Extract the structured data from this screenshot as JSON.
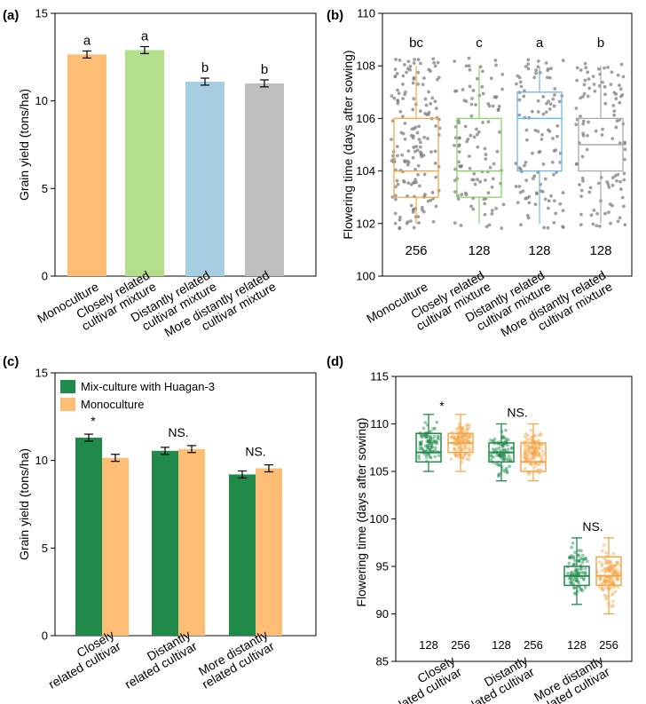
{
  "chart_data": [
    {
      "panel": "(a)",
      "type": "bar",
      "ylabel": "Grain yield (tons/ha)",
      "ylim": [
        0,
        15
      ],
      "yticks": [
        0,
        5,
        10,
        15
      ],
      "categories": [
        [
          "Monoculture"
        ],
        [
          "Closely related",
          "cultivar mixture"
        ],
        [
          "Distantly related",
          "cultivar mixture"
        ],
        [
          "More distantly related",
          "cultivar mixture"
        ]
      ],
      "values": [
        12.65,
        12.9,
        11.1,
        11.0
      ],
      "errors": [
        0.2,
        0.2,
        0.2,
        0.2
      ],
      "letters": [
        "a",
        "a",
        "b",
        "b"
      ],
      "colors": [
        "#fdbd74",
        "#b3df8a",
        "#a6cee3",
        "#bfbfbf"
      ]
    },
    {
      "panel": "(b)",
      "type": "box",
      "ylabel": "Flowering time (days after sowing)",
      "ylim": [
        100,
        110
      ],
      "yticks": [
        100,
        102,
        104,
        106,
        108,
        110
      ],
      "categories": [
        [
          "Monoculture"
        ],
        [
          "Closely related",
          "cultivar mixture"
        ],
        [
          "Distantly related",
          "cultivar mixture"
        ],
        [
          "More distantly related",
          "cultivar mixture"
        ]
      ],
      "boxes": [
        {
          "min": 102,
          "q1": 103,
          "median": 104,
          "q3": 106,
          "max": 108,
          "n": "256",
          "letter": "bc",
          "color": "#f5a64a"
        },
        {
          "min": 102,
          "q1": 103,
          "median": 104,
          "q3": 106,
          "max": 108,
          "n": "128",
          "letter": "c",
          "color": "#8fd068"
        },
        {
          "min": 102,
          "q1": 104,
          "median": 106,
          "q3": 107,
          "max": 108,
          "n": "128",
          "letter": "a",
          "color": "#6fb8e0"
        },
        {
          "min": 102,
          "q1": 104,
          "median": 105,
          "q3": 106,
          "max": 108,
          "n": "128",
          "letter": "b",
          "color": "#a9a9a9"
        }
      ],
      "point_color": "#808080"
    },
    {
      "panel": "(c)",
      "type": "bar",
      "ylabel": "Grain yield (tons/ha)",
      "ylim": [
        0,
        15
      ],
      "yticks": [
        0,
        5,
        10,
        15
      ],
      "categories": [
        [
          "Closely",
          "related cultivar"
        ],
        [
          "Distantly",
          "related cultivar"
        ],
        [
          "More distantly",
          "related cultivar"
        ]
      ],
      "series": [
        {
          "name": "Mix-culture with Huagan-3",
          "color": "#1f8a4a",
          "values": [
            11.3,
            10.55,
            9.2
          ],
          "errors": [
            0.2,
            0.2,
            0.2
          ]
        },
        {
          "name": "Monoculture",
          "color": "#fdbd74",
          "values": [
            10.15,
            10.65,
            9.55
          ],
          "errors": [
            0.2,
            0.2,
            0.2
          ]
        }
      ],
      "annotations": [
        "*",
        "NS.",
        "NS."
      ],
      "legend": "top-left"
    },
    {
      "panel": "(d)",
      "type": "box",
      "ylabel": "Flowering time (days after sowing)",
      "ylim": [
        85,
        115
      ],
      "yticks": [
        85,
        90,
        95,
        100,
        105,
        110,
        115
      ],
      "categories": [
        [
          "Closely",
          "related cultivar"
        ],
        [
          "Distantly",
          "related cultivar"
        ],
        [
          "More distantly",
          "related cultivar"
        ]
      ],
      "groups": [
        {
          "annotation": "*",
          "boxes": [
            {
              "min": 105,
              "q1": 106,
              "median": 107,
              "q3": 109,
              "max": 111,
              "n": "128",
              "color": "#1f8a4a"
            },
            {
              "min": 105,
              "q1": 107,
              "median": 108,
              "q3": 109,
              "max": 111,
              "n": "256",
              "color": "#f5a64a"
            }
          ]
        },
        {
          "annotation": "NS.",
          "boxes": [
            {
              "min": 104,
              "q1": 106,
              "median": 107,
              "q3": 108,
              "max": 110,
              "n": "128",
              "color": "#1f8a4a"
            },
            {
              "min": 104,
              "q1": 105,
              "median": 106,
              "q3": 108,
              "max": 110,
              "n": "256",
              "color": "#f5a64a"
            }
          ]
        },
        {
          "annotation": "NS.",
          "boxes": [
            {
              "min": 91,
              "q1": 93,
              "median": 94,
              "q3": 95,
              "max": 98,
              "n": "128",
              "color": "#1f8a4a"
            },
            {
              "min": 90,
              "q1": 93,
              "median": 94,
              "q3": 96,
              "max": 98,
              "n": "256",
              "color": "#f5a64a"
            }
          ]
        }
      ]
    }
  ]
}
